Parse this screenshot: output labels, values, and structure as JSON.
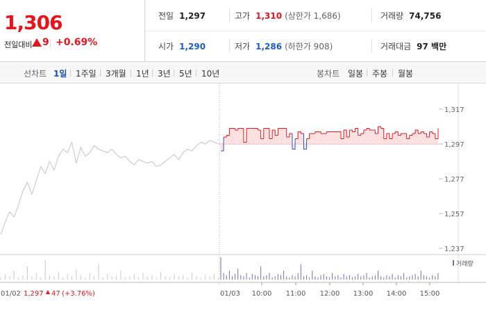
{
  "quote": {
    "price": "1,306",
    "change_label": "전일대비",
    "change": "9",
    "change_pct": "+0.69%",
    "stats": [
      {
        "label": "전일",
        "value": "1,297",
        "extra": ""
      },
      {
        "label": "고가",
        "value": "1,310",
        "extra": "(상한가 1,686)"
      },
      {
        "label": "거래량",
        "value": "74,756",
        "extra": ""
      },
      {
        "label": "시가",
        "value": "1,290",
        "extra": ""
      },
      {
        "label": "저가",
        "value": "1,286",
        "extra": "(하한가 908)"
      },
      {
        "label": "거래대금",
        "value": "97 백만",
        "extra": ""
      }
    ],
    "colors": {
      "up": "#e8141c",
      "down": "#1a5ccc"
    }
  },
  "tabs": {
    "line_label": "선차트",
    "line_items": [
      "1일",
      "1주일",
      "3개월",
      "1년",
      "3년",
      "5년",
      "10년"
    ],
    "selected": "1일",
    "candle_label": "봉차트",
    "candle_items": [
      "일봉",
      "주봉",
      "월봉"
    ]
  },
  "chart_data": {
    "type": "line",
    "ylim": [
      1237,
      1317
    ],
    "yticks": [
      "1,317",
      "1,297",
      "1,277",
      "1,257",
      "1,237"
    ],
    "ytick_values": [
      1317,
      1297,
      1277,
      1257,
      1237
    ],
    "reference_price": 1297,
    "prev_day": {
      "x_label": "01/02",
      "close_label": "1,297",
      "change_label": "47",
      "change_pct_label": "(+3.76%)",
      "values": [
        1245,
        1252,
        1258,
        1255,
        1262,
        1270,
        1275,
        1268,
        1276,
        1284,
        1280,
        1287,
        1282,
        1290,
        1294,
        1292,
        1298,
        1286,
        1295,
        1290,
        1292,
        1296,
        1294,
        1293,
        1292,
        1294,
        1291,
        1289,
        1290,
        1287,
        1285,
        1288,
        1287,
        1286,
        1287,
        1284,
        1285,
        1287,
        1289,
        1291,
        1288,
        1292,
        1294,
        1293,
        1296,
        1298,
        1297,
        1299,
        1298,
        1297
      ]
    },
    "today": {
      "x_label": "01/03",
      "time_labels": [
        "10:00",
        "11:00",
        "12:00",
        "13:00",
        "14:00",
        "15:00"
      ],
      "values": [
        1293,
        1301,
        1302,
        1306,
        1306,
        1305,
        1306,
        1306,
        1298,
        1306,
        1306,
        1306,
        1306,
        1305,
        1300,
        1306,
        1306,
        1300,
        1305,
        1302,
        1306,
        1306,
        1306,
        1301,
        1303,
        1294,
        1300,
        1304,
        1303,
        1294,
        1300,
        1303,
        1303,
        1304,
        1304,
        1303,
        1303,
        1304,
        1304,
        1304,
        1304,
        1304,
        1300,
        1305,
        1301,
        1305,
        1304,
        1306,
        1302,
        1303,
        1305,
        1306,
        1305,
        1305,
        1303,
        1307,
        1306,
        1300,
        1303,
        1300,
        1303,
        1304,
        1302,
        1303,
        1303,
        1300,
        1302,
        1303,
        1305,
        1303,
        1304,
        1303,
        1301,
        1304,
        1303,
        1300,
        1306
      ]
    },
    "volume_label": "거래량",
    "volume_series": {
      "prev": [
        2,
        5,
        3,
        8,
        2,
        4,
        12,
        3,
        6,
        2,
        18,
        4,
        3,
        7,
        2,
        5,
        3,
        9,
        4,
        2,
        6,
        3,
        14,
        2,
        5,
        3,
        4,
        8,
        2,
        3,
        5,
        2,
        6,
        3,
        4,
        2,
        7,
        3,
        2,
        5,
        3,
        4,
        2,
        6,
        3,
        2,
        4,
        3,
        5,
        2
      ],
      "today": [
        20,
        6,
        4,
        8,
        3,
        5,
        10,
        4,
        3,
        6,
        2,
        5,
        4,
        3,
        12,
        3,
        4,
        6,
        2,
        3,
        5,
        4,
        8,
        3,
        2,
        4,
        3,
        6,
        14,
        3,
        4,
        2,
        8,
        3,
        2,
        4,
        5,
        3,
        2,
        6,
        3,
        4,
        2,
        5,
        3,
        4,
        2,
        3,
        5,
        3,
        4,
        6,
        2,
        3,
        4,
        8,
        3,
        2,
        4,
        3,
        5,
        2,
        4,
        3,
        6,
        2,
        3,
        4,
        5,
        3,
        8,
        4,
        3,
        2,
        4,
        3,
        6
      ]
    }
  }
}
